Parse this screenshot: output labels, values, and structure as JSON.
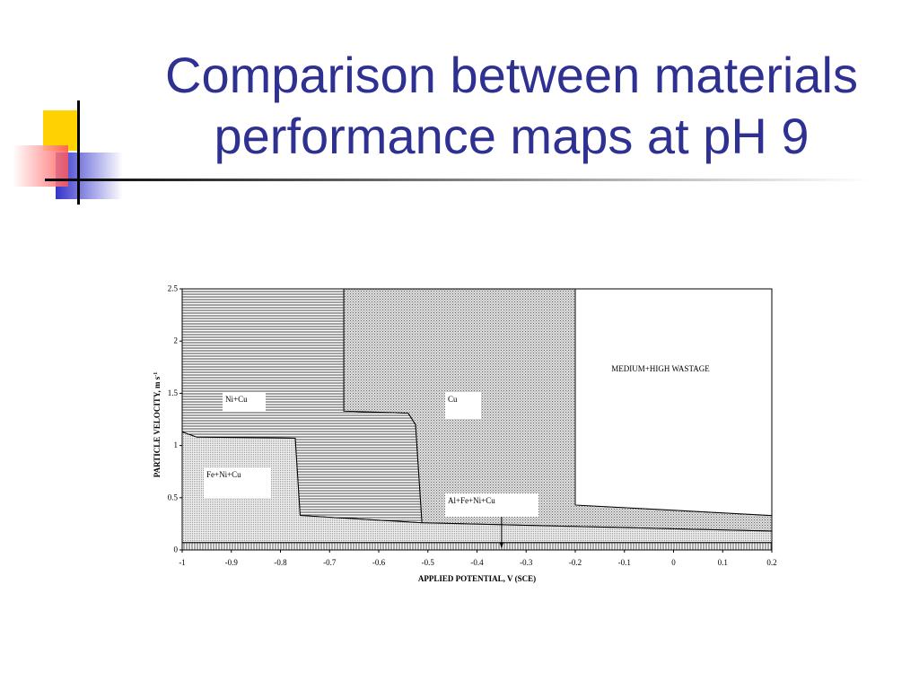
{
  "slide": {
    "title": "Comparison between materials performance maps at pH 9"
  },
  "chart_data": {
    "type": "region-map",
    "xlabel": "APPLIED POTENTIAL, V (SCE)",
    "ylabel": "PARTICLE VELOCITY, m s",
    "ylabel_superscript": "-1",
    "xlim": [
      -1,
      0.2
    ],
    "xticks": [
      -1,
      -0.9,
      -0.8,
      -0.7,
      -0.6,
      -0.5,
      -0.4,
      -0.3,
      -0.2,
      -0.1,
      0,
      0.1,
      0.2
    ],
    "ylim": [
      0,
      2.5
    ],
    "yticks": [
      0,
      0.5,
      1,
      1.5,
      2,
      2.5
    ],
    "regions": [
      {
        "name": "Ni+Cu",
        "pattern": "horizontal",
        "x": [
          -1,
          -1,
          -0.671,
          -0.671,
          -0.54,
          -0.525,
          -0.512,
          -0.76,
          -0.77,
          -0.97
        ],
        "y": [
          1.13,
          2.5,
          2.5,
          1.33,
          1.31,
          1.2,
          0.26,
          0.33,
          1.07,
          1.08
        ]
      },
      {
        "name": "Cu",
        "pattern": "dots",
        "x": [
          -0.671,
          -0.2,
          -0.2,
          0.2,
          0.2,
          -0.512,
          -0.525,
          -0.54,
          -0.671
        ],
        "y": [
          2.5,
          2.5,
          0.43,
          0.33,
          0.18,
          0.26,
          1.2,
          1.31,
          1.33
        ]
      },
      {
        "name": "Fe+Ni+Cu",
        "pattern": "fine",
        "x": [
          -1,
          -1,
          -0.97,
          -0.77,
          -0.76,
          -0.512,
          0.2,
          0.2
        ],
        "y": [
          0.07,
          1.13,
          1.08,
          1.07,
          0.33,
          0.26,
          0.18,
          0.07
        ]
      },
      {
        "name": "Al+Fe+Ni+Cu",
        "pattern": "vertical",
        "x": [
          -1,
          0.2,
          0.2,
          -1
        ],
        "y": [
          0,
          0,
          0.07,
          0.07
        ],
        "arrow_x": -0.35
      },
      {
        "name": "MEDIUM+HIGH WASTAGE",
        "pattern": "none",
        "x": [
          -0.2,
          0.2,
          0.2,
          -0.2
        ],
        "y": [
          2.5,
          2.5,
          0.33,
          0.43
        ]
      }
    ]
  }
}
